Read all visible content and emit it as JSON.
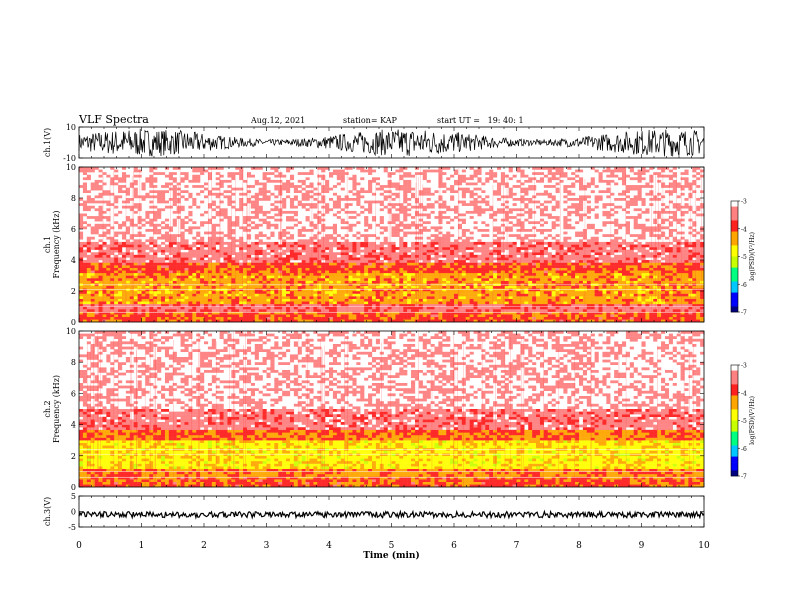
{
  "header": {
    "title": "VLF Spectra",
    "date": "Aug.12, 2021",
    "station": "station= KAP",
    "start": "start UT =   19: 40: 1"
  },
  "colors": {
    "spectrogram_background": "#ffffff",
    "colormap": [
      "#000080",
      "#0000ff",
      "#00c8ff",
      "#00ff80",
      "#c8ff00",
      "#ffff00",
      "#ffa500",
      "#ff2020",
      "#ff8080",
      "#ffffff"
    ],
    "trace": "#000000"
  },
  "chart_data": [
    {
      "type": "line",
      "name": "ch1-waveform",
      "ylabel": "ch.1(V)",
      "ylim": [
        -10,
        10
      ],
      "yticks": [
        "10",
        "-10"
      ],
      "xlim": [
        0,
        10
      ]
    },
    {
      "type": "heatmap",
      "name": "ch1-spectrogram",
      "ylabel": "ch.1\nFrequency (kHz)",
      "ylim": [
        0,
        10
      ],
      "yticks": [
        "0",
        "2",
        "4",
        "6",
        "8",
        "10"
      ],
      "xlim": [
        0,
        10
      ],
      "colorbar": {
        "label": "log(PSD)(V²/Hz)",
        "range": [
          -7,
          -3
        ],
        "ticks": [
          "-3",
          "-4",
          "-5",
          "-6",
          "-7"
        ]
      },
      "intensity_profile": [
        {
          "from_khz": 0,
          "to_khz": 0.6,
          "log_psd": -4.0
        },
        {
          "from_khz": 0.6,
          "to_khz": 1.2,
          "log_psd": -3.6
        },
        {
          "from_khz": 1.2,
          "to_khz": 3.2,
          "log_psd": -4.3
        },
        {
          "from_khz": 3.2,
          "to_khz": 3.8,
          "log_psd": -4.0
        },
        {
          "from_khz": 3.8,
          "to_khz": 5.2,
          "log_psd": -3.5
        },
        {
          "from_khz": 5.2,
          "to_khz": 10,
          "log_psd": -3.2
        }
      ]
    },
    {
      "type": "heatmap",
      "name": "ch2-spectrogram",
      "ylabel": "ch.2\nFrequency (kHz)",
      "ylim": [
        0,
        10
      ],
      "yticks": [
        "0",
        "2",
        "4",
        "6",
        "8",
        "10"
      ],
      "xlim": [
        0,
        10
      ],
      "colorbar": {
        "label": "log(PSD)(V²/Hz)",
        "range": [
          -7,
          -3
        ],
        "ticks": [
          "-3",
          "-4",
          "-5",
          "-6",
          "-7"
        ]
      },
      "intensity_profile": [
        {
          "from_khz": 0,
          "to_khz": 0.6,
          "log_psd": -4.0
        },
        {
          "from_khz": 0.6,
          "to_khz": 1.2,
          "log_psd": -4.2
        },
        {
          "from_khz": 1.2,
          "to_khz": 3.0,
          "log_psd": -4.7
        },
        {
          "from_khz": 3.0,
          "to_khz": 3.6,
          "log_psd": -4.1
        },
        {
          "from_khz": 3.6,
          "to_khz": 5.0,
          "log_psd": -3.5
        },
        {
          "from_khz": 5.0,
          "to_khz": 10,
          "log_psd": -3.2
        }
      ]
    },
    {
      "type": "line",
      "name": "ch3-waveform",
      "ylabel": "ch.3(V)",
      "ylim": [
        -5,
        5
      ],
      "yticks": [
        "5",
        "0",
        "-5"
      ],
      "xlim": [
        0,
        10
      ],
      "xlabel": "Time (min)",
      "xticks": [
        "0",
        "1",
        "2",
        "3",
        "4",
        "5",
        "6",
        "7",
        "8",
        "9",
        "10"
      ],
      "level": -1.0
    }
  ]
}
